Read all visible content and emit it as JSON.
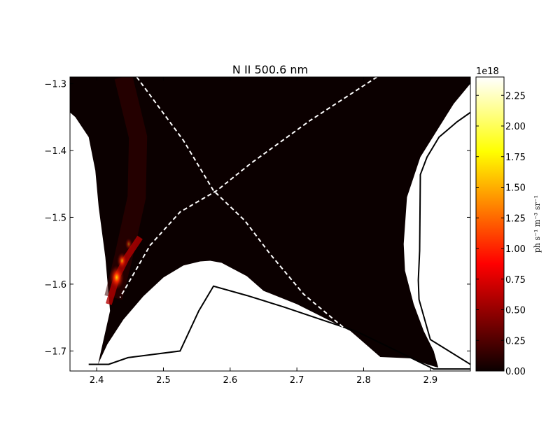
{
  "chart_data": {
    "type": "heatmap",
    "title": "N II 500.6 nm",
    "xlabel": "",
    "ylabel": "",
    "xlim": [
      2.36,
      2.96
    ],
    "ylim": [
      -1.73,
      -1.29
    ],
    "x_ticks": [
      2.4,
      2.5,
      2.6,
      2.7,
      2.8,
      2.9
    ],
    "x_tick_labels": [
      "2.4",
      "2.5",
      "2.6",
      "2.7",
      "2.8",
      "2.9"
    ],
    "y_ticks": [
      -1.3,
      -1.4,
      -1.5,
      -1.6,
      -1.7
    ],
    "y_tick_labels": [
      "−1.3",
      "−1.4",
      "−1.5",
      "−1.6",
      "−1.7"
    ],
    "colormap": "hot",
    "colorbar": {
      "range": [
        0,
        2.4e+18
      ],
      "offset_text": "1e18",
      "ticks": [
        0,
        0.25,
        0.5,
        0.75,
        1.0,
        1.25,
        1.5,
        1.75,
        2.0,
        2.25
      ],
      "tick_labels": [
        "0.00",
        "0.25",
        "0.50",
        "0.75",
        "1.00",
        "1.25",
        "1.50",
        "1.75",
        "2.00",
        "2.25"
      ],
      "label": "ph s⁻¹ m⁻³ sr⁻¹"
    },
    "emission_region": [
      [
        2.36,
        -1.29
      ],
      [
        2.96,
        -1.29
      ],
      [
        2.96,
        -1.3
      ],
      [
        2.935,
        -1.33
      ],
      [
        2.91,
        -1.37
      ],
      [
        2.885,
        -1.41
      ],
      [
        2.865,
        -1.47
      ],
      [
        2.86,
        -1.54
      ],
      [
        2.862,
        -1.58
      ],
      [
        2.875,
        -1.63
      ],
      [
        2.89,
        -1.67
      ],
      [
        2.905,
        -1.7
      ],
      [
        2.912,
        -1.725
      ],
      [
        2.895,
        -1.72
      ],
      [
        2.87,
        -1.711
      ],
      [
        2.825,
        -1.709
      ],
      [
        2.78,
        -1.67
      ],
      [
        2.7,
        -1.63
      ],
      [
        2.65,
        -1.61
      ],
      [
        2.625,
        -1.588
      ],
      [
        2.587,
        -1.568
      ],
      [
        2.57,
        -1.565
      ],
      [
        2.555,
        -1.566
      ],
      [
        2.53,
        -1.572
      ],
      [
        2.5,
        -1.59
      ],
      [
        2.47,
        -1.618
      ],
      [
        2.44,
        -1.653
      ],
      [
        2.416,
        -1.69
      ],
      [
        2.402,
        -1.72
      ],
      [
        2.42,
        -1.64
      ],
      [
        2.413,
        -1.56
      ],
      [
        2.403,
        -1.485
      ],
      [
        2.398,
        -1.43
      ],
      [
        2.388,
        -1.38
      ],
      [
        2.368,
        -1.35
      ],
      [
        2.36,
        -1.343
      ]
    ],
    "hotspots": [
      {
        "x": 2.43,
        "y": -1.59,
        "value": 2.3e+18
      },
      {
        "x": 2.438,
        "y": -1.565,
        "value": 1.2e+18
      },
      {
        "x": 2.448,
        "y": -1.54,
        "value": 5e+17
      }
    ],
    "wall_lines": [
      [
        [
          2.388,
          -1.72
        ],
        [
          2.418,
          -1.72
        ],
        [
          2.447,
          -1.71
        ],
        [
          2.525,
          -1.7
        ],
        [
          2.553,
          -1.64
        ],
        [
          2.575,
          -1.603
        ],
        [
          2.625,
          -1.617
        ],
        [
          2.68,
          -1.634
        ],
        [
          2.79,
          -1.671
        ],
        [
          2.85,
          -1.7
        ],
        [
          2.905,
          -1.727
        ],
        [
          2.96,
          -1.727
        ]
      ],
      [
        [
          2.96,
          -1.343
        ],
        [
          2.94,
          -1.357
        ],
        [
          2.913,
          -1.38
        ],
        [
          2.895,
          -1.41
        ],
        [
          2.885,
          -1.436
        ],
        [
          2.884,
          -1.55
        ],
        [
          2.882,
          -1.594
        ],
        [
          2.883,
          -1.623
        ],
        [
          2.9,
          -1.683
        ],
        [
          2.96,
          -1.72
        ]
      ]
    ],
    "separatrix_lines": [
      [
        [
          2.46,
          -1.29
        ],
        [
          2.53,
          -1.385
        ],
        [
          2.575,
          -1.46
        ],
        [
          2.622,
          -1.505
        ],
        [
          2.66,
          -1.555
        ],
        [
          2.71,
          -1.615
        ],
        [
          2.77,
          -1.665
        ]
      ],
      [
        [
          2.82,
          -1.29
        ],
        [
          2.72,
          -1.355
        ],
        [
          2.63,
          -1.42
        ],
        [
          2.58,
          -1.46
        ],
        [
          2.525,
          -1.492
        ],
        [
          2.48,
          -1.542
        ],
        [
          2.435,
          -1.62
        ]
      ]
    ]
  }
}
